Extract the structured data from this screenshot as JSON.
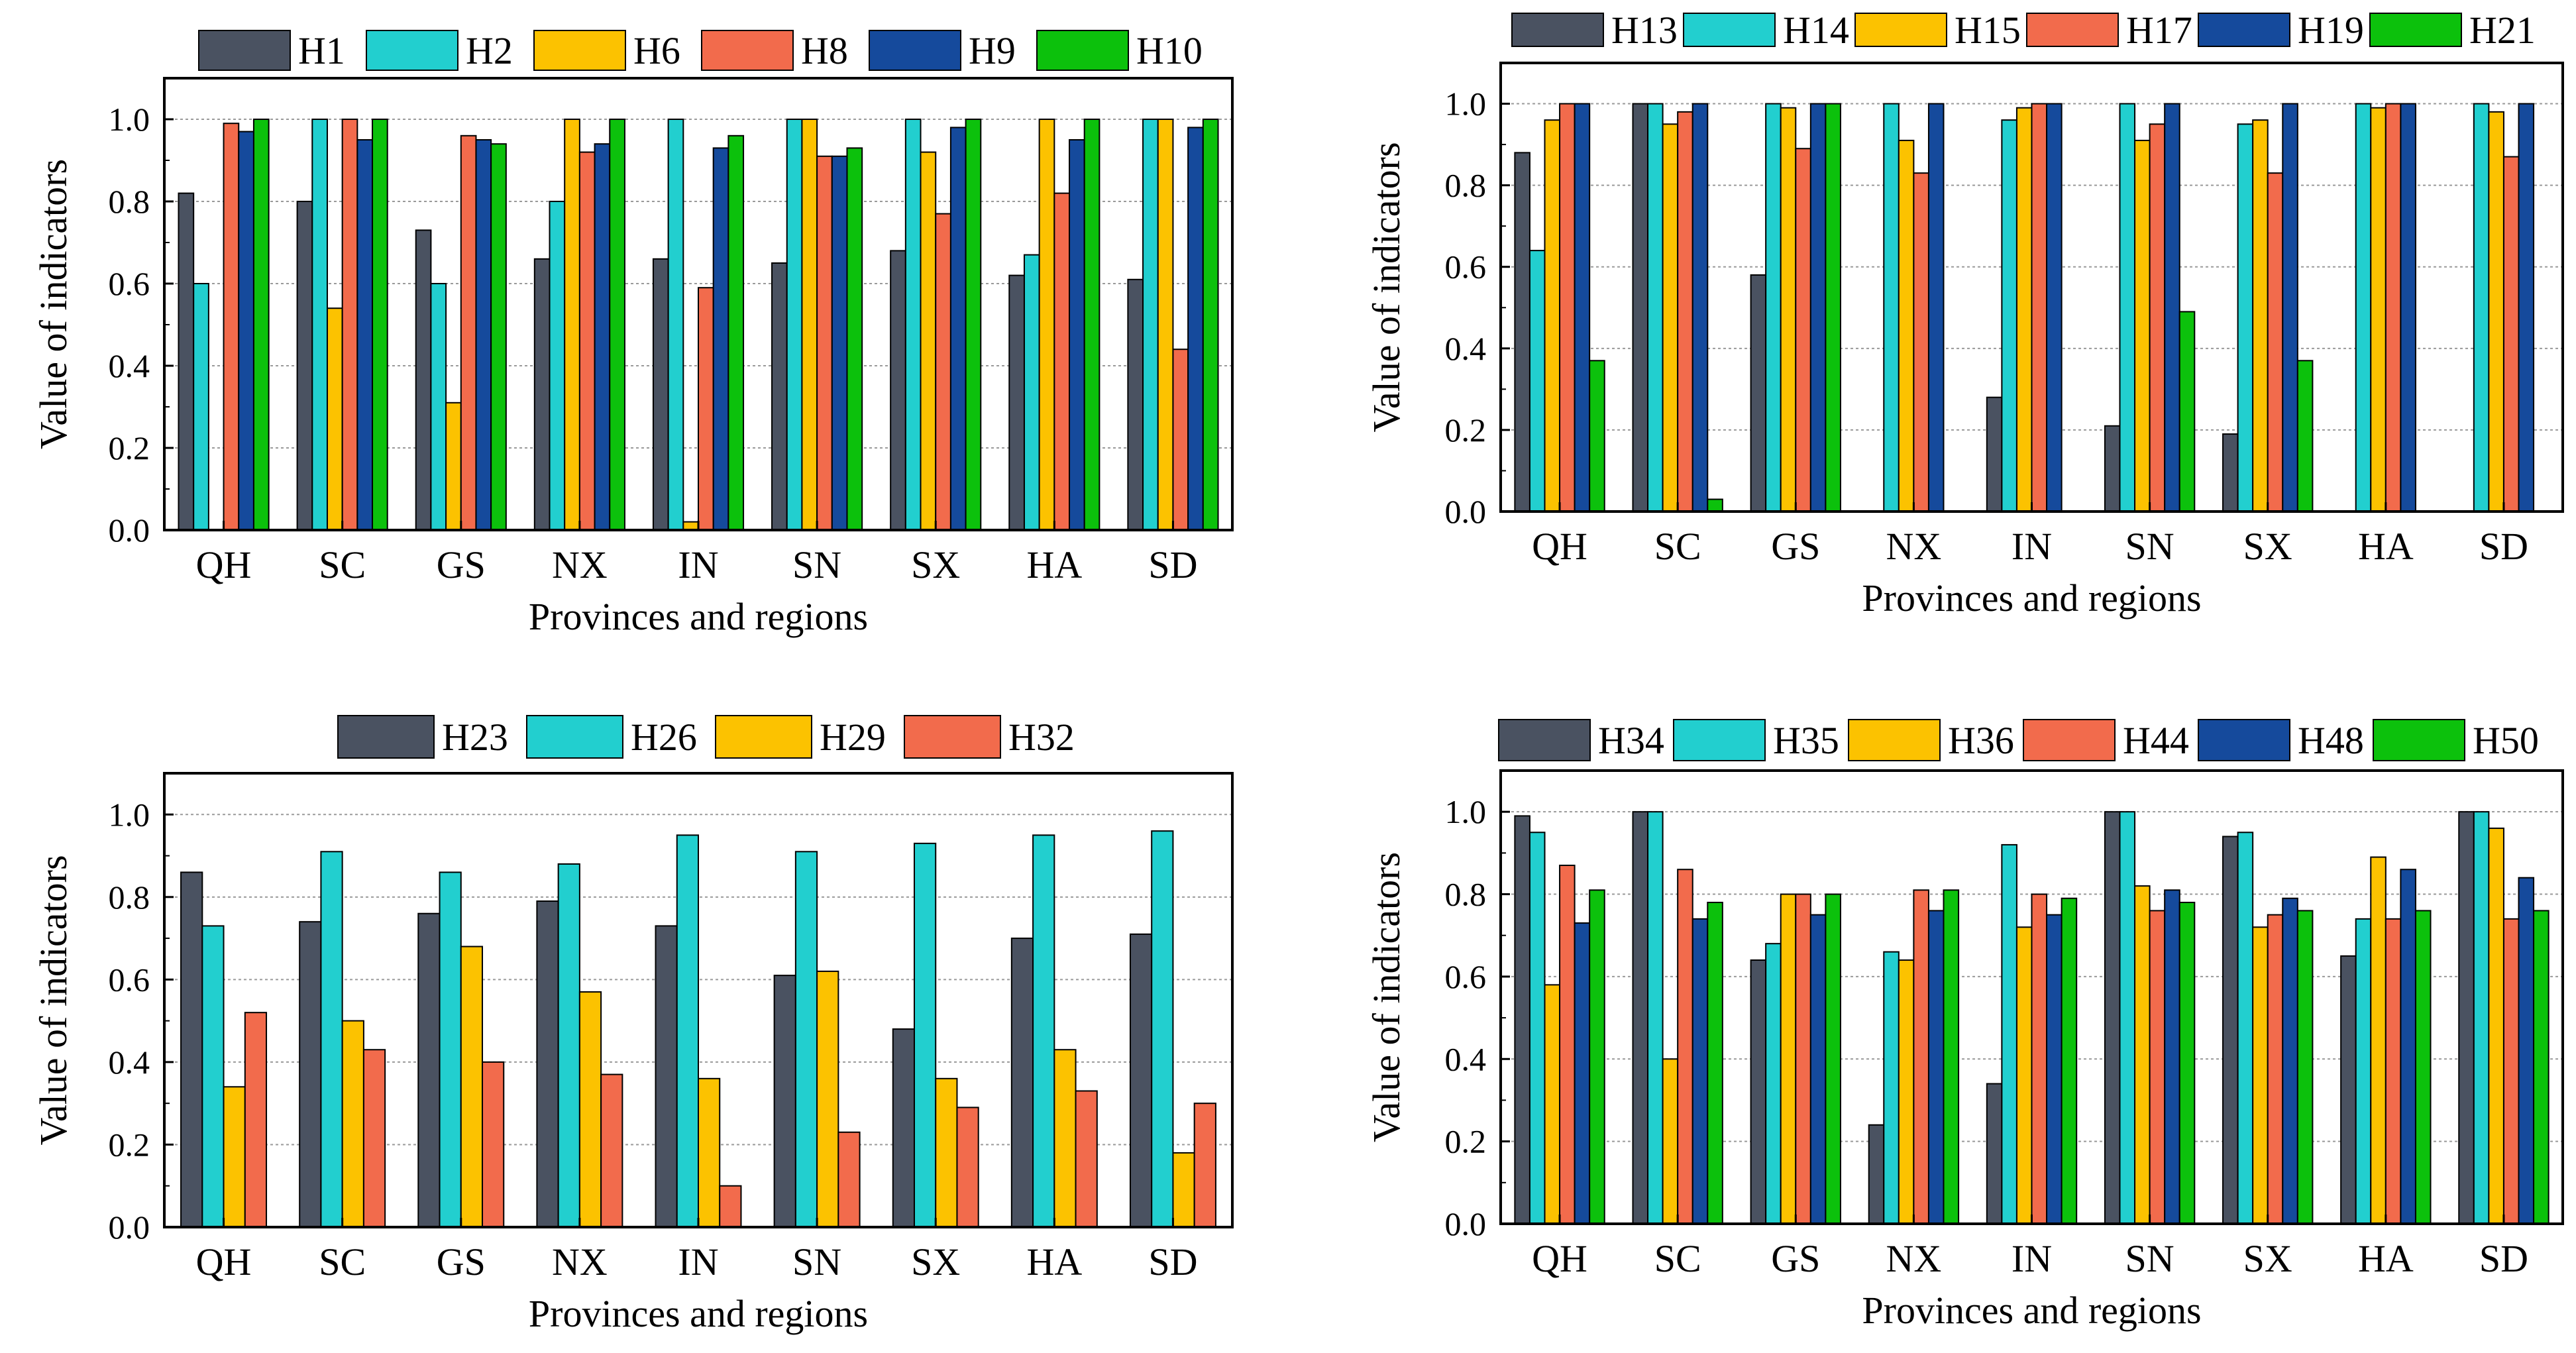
{
  "axis_text": {
    "x_title": "Provinces and regions",
    "y_title": "Value of indicators"
  },
  "colors": {
    "dark_gray": "#4a5261",
    "cyan": "#22cfcf",
    "yellow": "#fcc200",
    "salmon": "#f26b4c",
    "navy": "#154a9c",
    "green": "#0cc10c"
  },
  "chart_data": [
    {
      "type": "bar",
      "title": "",
      "xlabel": "Provinces and regions",
      "ylabel": "Value of indicators",
      "ylim": [
        0,
        1.1
      ],
      "yticks": [
        "0.0",
        "0.2",
        "0.4",
        "0.6",
        "0.8",
        "1.0"
      ],
      "grid": "horizontal dotted",
      "legend_position": "top",
      "categories": [
        "QH",
        "SC",
        "GS",
        "NX",
        "IN",
        "SN",
        "SX",
        "HA",
        "SD"
      ],
      "series": [
        {
          "name": "H1",
          "color": "#4a5261",
          "values": [
            0.82,
            0.8,
            0.73,
            0.66,
            0.66,
            0.65,
            0.68,
            0.62,
            0.61
          ]
        },
        {
          "name": "H2",
          "color": "#22cfcf",
          "values": [
            0.6,
            1.0,
            0.6,
            0.8,
            1.0,
            1.0,
            1.0,
            0.67,
            1.0
          ]
        },
        {
          "name": "H6",
          "color": "#fcc200",
          "values": [
            0.0,
            0.54,
            0.31,
            1.0,
            0.02,
            1.0,
            0.92,
            1.0,
            1.0
          ]
        },
        {
          "name": "H8",
          "color": "#f26b4c",
          "values": [
            0.99,
            1.0,
            0.96,
            0.92,
            0.59,
            0.91,
            0.77,
            0.82,
            0.44
          ]
        },
        {
          "name": "H9",
          "color": "#154a9c",
          "values": [
            0.97,
            0.95,
            0.95,
            0.94,
            0.93,
            0.91,
            0.98,
            0.95,
            0.98
          ]
        },
        {
          "name": "H10",
          "color": "#0cc10c",
          "values": [
            1.0,
            1.0,
            0.94,
            1.0,
            0.96,
            0.93,
            1.0,
            1.0,
            1.0
          ]
        }
      ]
    },
    {
      "type": "bar",
      "title": "",
      "xlabel": "Provinces and regions",
      "ylabel": "Value of indicators",
      "ylim": [
        0,
        1.1
      ],
      "yticks": [
        "0.0",
        "0.2",
        "0.4",
        "0.6",
        "0.8",
        "1.0"
      ],
      "grid": "horizontal dotted",
      "legend_position": "top",
      "categories": [
        "QH",
        "SC",
        "GS",
        "NX",
        "IN",
        "SN",
        "SX",
        "HA",
        "SD"
      ],
      "series": [
        {
          "name": "H13",
          "color": "#4a5261",
          "values": [
            0.88,
            1.0,
            0.58,
            0.0,
            0.28,
            0.21,
            0.19,
            0.0,
            0.0
          ]
        },
        {
          "name": "H14",
          "color": "#22cfcf",
          "values": [
            0.64,
            1.0,
            1.0,
            1.0,
            0.96,
            1.0,
            0.95,
            1.0,
            1.0
          ]
        },
        {
          "name": "H15",
          "color": "#fcc200",
          "values": [
            0.96,
            0.95,
            0.99,
            0.91,
            0.99,
            0.91,
            0.96,
            0.99,
            0.98
          ]
        },
        {
          "name": "H17",
          "color": "#f26b4c",
          "values": [
            1.0,
            0.98,
            0.89,
            0.83,
            1.0,
            0.95,
            0.83,
            1.0,
            0.87
          ]
        },
        {
          "name": "H19",
          "color": "#154a9c",
          "values": [
            1.0,
            1.0,
            1.0,
            1.0,
            1.0,
            1.0,
            1.0,
            1.0,
            1.0
          ]
        },
        {
          "name": "H21",
          "color": "#0cc10c",
          "values": [
            0.37,
            0.03,
            1.0,
            0.0,
            0.0,
            0.49,
            0.37,
            0.0,
            0.0
          ]
        }
      ]
    },
    {
      "type": "bar",
      "title": "",
      "xlabel": "Provinces and regions",
      "ylabel": "Value of indicators",
      "ylim": [
        0,
        1.1
      ],
      "yticks": [
        "0.0",
        "0.2",
        "0.4",
        "0.6",
        "0.8",
        "1.0"
      ],
      "grid": "horizontal dotted",
      "legend_position": "top",
      "categories": [
        "QH",
        "SC",
        "GS",
        "NX",
        "IN",
        "SN",
        "SX",
        "HA",
        "SD"
      ],
      "series": [
        {
          "name": "H23",
          "color": "#4a5261",
          "values": [
            0.86,
            0.74,
            0.76,
            0.79,
            0.73,
            0.61,
            0.48,
            0.7,
            0.71
          ]
        },
        {
          "name": "H26",
          "color": "#22cfcf",
          "values": [
            0.73,
            0.91,
            0.86,
            0.88,
            0.95,
            0.91,
            0.93,
            0.95,
            0.96
          ]
        },
        {
          "name": "H29",
          "color": "#fcc200",
          "values": [
            0.34,
            0.5,
            0.68,
            0.57,
            0.36,
            0.62,
            0.36,
            0.43,
            0.18
          ]
        },
        {
          "name": "H32",
          "color": "#f26b4c",
          "values": [
            0.52,
            0.43,
            0.4,
            0.37,
            0.1,
            0.23,
            0.29,
            0.33,
            0.3
          ]
        }
      ]
    },
    {
      "type": "bar",
      "title": "",
      "xlabel": "Provinces and regions",
      "ylabel": "Value of indicators",
      "ylim": [
        0,
        1.1
      ],
      "yticks": [
        "0.0",
        "0.2",
        "0.4",
        "0.6",
        "0.8",
        "1.0"
      ],
      "grid": "horizontal dotted",
      "legend_position": "top",
      "categories": [
        "QH",
        "SC",
        "GS",
        "NX",
        "IN",
        "SN",
        "SX",
        "HA",
        "SD"
      ],
      "series": [
        {
          "name": "H34",
          "color": "#4a5261",
          "values": [
            0.99,
            1.0,
            0.64,
            0.24,
            0.34,
            1.0,
            0.94,
            0.65,
            1.0
          ]
        },
        {
          "name": "H35",
          "color": "#22cfcf",
          "values": [
            0.95,
            1.0,
            0.68,
            0.66,
            0.92,
            1.0,
            0.95,
            0.74,
            1.0
          ]
        },
        {
          "name": "H36",
          "color": "#fcc200",
          "values": [
            0.58,
            0.4,
            0.8,
            0.64,
            0.72,
            0.82,
            0.72,
            0.89,
            0.96
          ]
        },
        {
          "name": "H44",
          "color": "#f26b4c",
          "values": [
            0.87,
            0.86,
            0.8,
            0.81,
            0.8,
            0.76,
            0.75,
            0.74,
            0.74
          ]
        },
        {
          "name": "H48",
          "color": "#154a9c",
          "values": [
            0.73,
            0.74,
            0.75,
            0.76,
            0.75,
            0.81,
            0.79,
            0.86,
            0.84
          ]
        },
        {
          "name": "H50",
          "color": "#0cc10c",
          "values": [
            0.81,
            0.78,
            0.8,
            0.81,
            0.79,
            0.78,
            0.76,
            0.76,
            0.76
          ]
        }
      ]
    }
  ]
}
